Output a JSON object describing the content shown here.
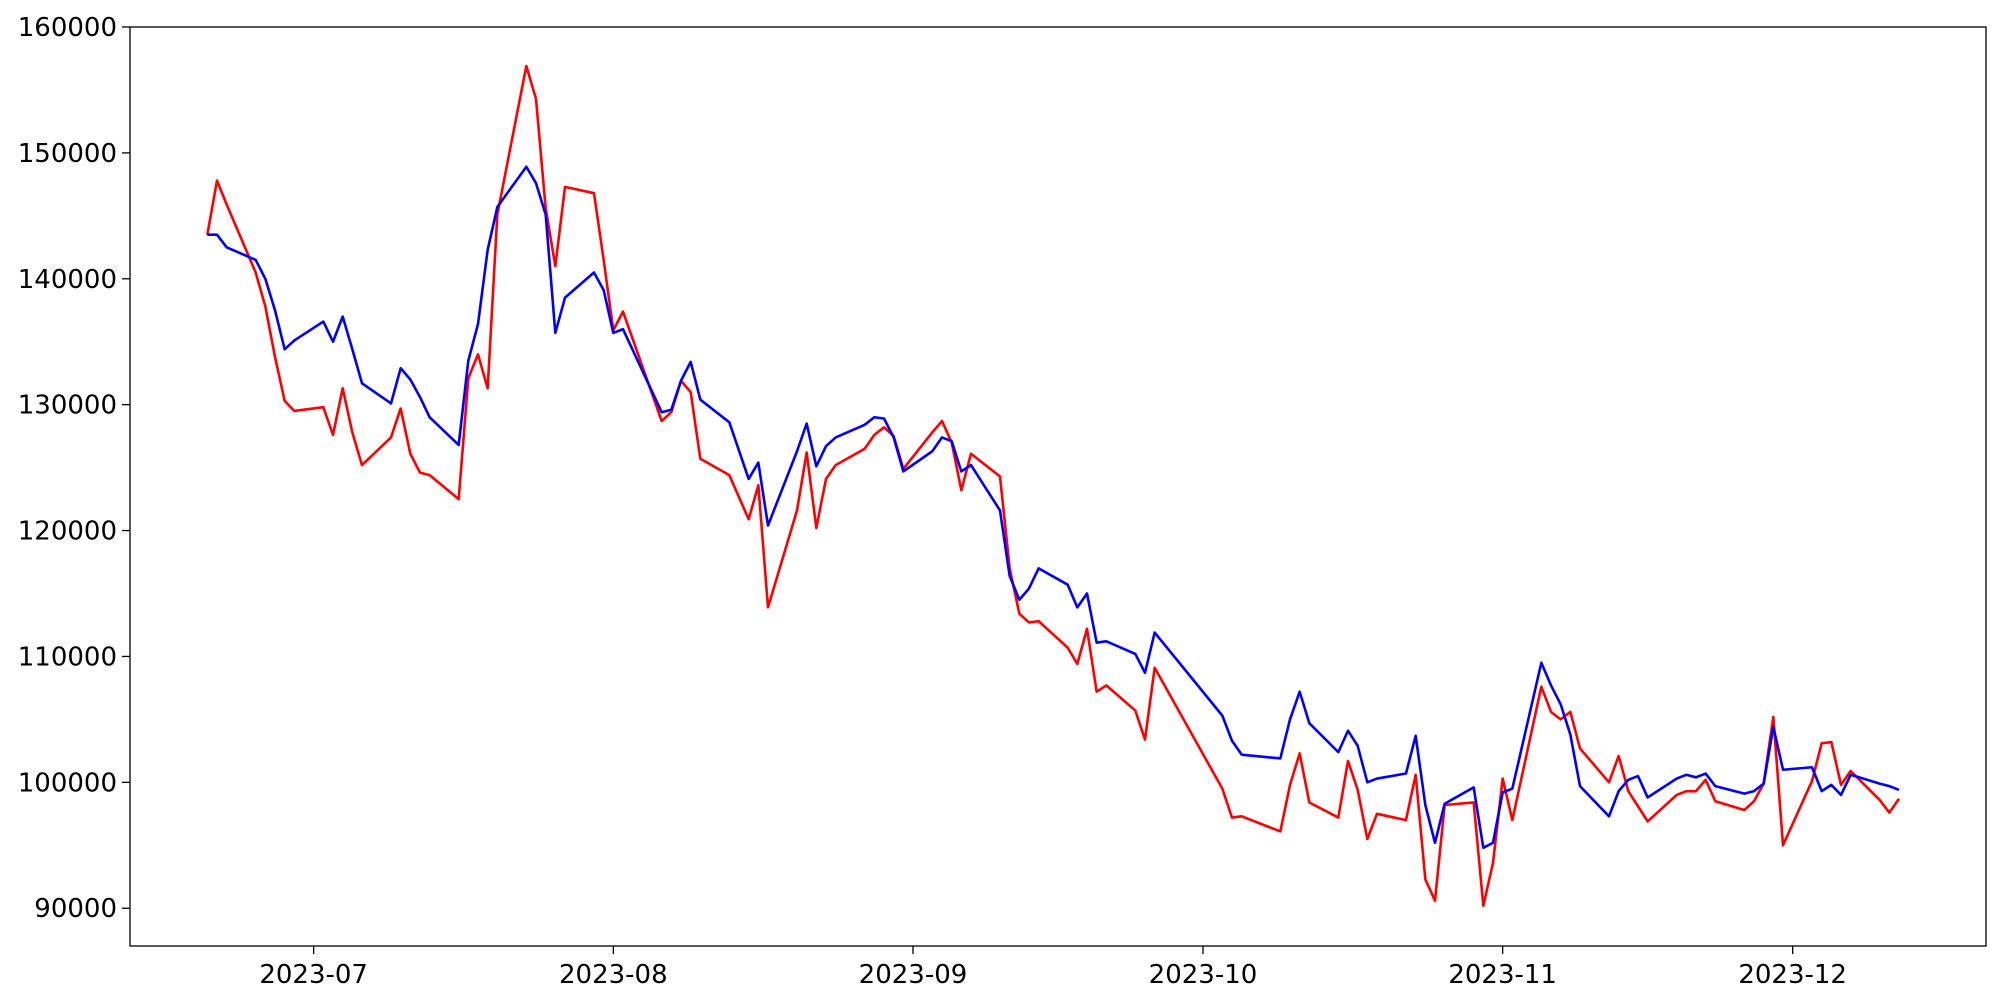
{
  "chart_data": {
    "type": "line",
    "x": [
      "2023-06-20",
      "2023-06-21",
      "2023-06-22",
      "2023-06-25",
      "2023-06-26",
      "2023-06-27",
      "2023-06-28",
      "2023-06-29",
      "2023-07-02",
      "2023-07-03",
      "2023-07-04",
      "2023-07-05",
      "2023-07-06",
      "2023-07-09",
      "2023-07-10",
      "2023-07-11",
      "2023-07-12",
      "2023-07-13",
      "2023-07-16",
      "2023-07-17",
      "2023-07-18",
      "2023-07-19",
      "2023-07-20",
      "2023-07-23",
      "2023-07-24",
      "2023-07-25",
      "2023-07-26",
      "2023-07-27",
      "2023-07-30",
      "2023-07-31",
      "2023-08-01",
      "2023-08-02",
      "2023-08-06",
      "2023-08-07",
      "2023-08-08",
      "2023-08-09",
      "2023-08-10",
      "2023-08-13",
      "2023-08-15",
      "2023-08-16",
      "2023-08-17",
      "2023-08-20",
      "2023-08-21",
      "2023-08-22",
      "2023-08-23",
      "2023-08-24",
      "2023-08-27",
      "2023-08-28",
      "2023-08-29",
      "2023-08-30",
      "2023-08-31",
      "2023-09-03",
      "2023-09-04",
      "2023-09-05",
      "2023-09-06",
      "2023-09-07",
      "2023-09-10",
      "2023-09-11",
      "2023-09-12",
      "2023-09-13",
      "2023-09-14",
      "2023-09-17",
      "2023-09-18",
      "2023-09-19",
      "2023-09-20",
      "2023-09-21",
      "2023-09-24",
      "2023-09-25",
      "2023-09-26",
      "2023-10-03",
      "2023-10-04",
      "2023-10-05",
      "2023-10-09",
      "2023-10-10",
      "2023-10-11",
      "2023-10-12",
      "2023-10-15",
      "2023-10-16",
      "2023-10-17",
      "2023-10-18",
      "2023-10-19",
      "2023-10-22",
      "2023-10-23",
      "2023-10-24",
      "2023-10-25",
      "2023-10-26",
      "2023-10-29",
      "2023-10-30",
      "2023-10-31",
      "2023-11-01",
      "2023-11-02",
      "2023-11-05",
      "2023-11-06",
      "2023-11-07",
      "2023-11-08",
      "2023-11-09",
      "2023-11-12",
      "2023-11-13",
      "2023-11-14",
      "2023-11-15",
      "2023-11-16",
      "2023-11-19",
      "2023-11-20",
      "2023-11-21",
      "2023-11-22",
      "2023-11-23",
      "2023-11-26",
      "2023-11-27",
      "2023-11-28",
      "2023-11-29",
      "2023-11-30",
      "2023-12-03",
      "2023-12-04",
      "2023-12-05",
      "2023-12-06",
      "2023-12-07",
      "2023-12-10",
      "2023-12-11",
      "2023-12-12"
    ],
    "series": [
      {
        "color": "#ff0000",
        "values": [
          143500,
          147800,
          145900,
          140500,
          137800,
          133800,
          130300,
          129500,
          129800,
          127600,
          131300,
          127800,
          125200,
          127400,
          129700,
          126100,
          124600,
          124400,
          122500,
          132100,
          134000,
          131300,
          145100,
          156900,
          154300,
          145600,
          141000,
          147300,
          146800,
          141500,
          135900,
          137400,
          128700,
          129400,
          131900,
          131000,
          125700,
          124400,
          120900,
          123600,
          113900,
          121600,
          126200,
          120200,
          124100,
          125200,
          126500,
          127600,
          128200,
          127500,
          124900,
          127800,
          128700,
          127000,
          123200,
          126100,
          124300,
          117000,
          113400,
          112700,
          112800,
          110700,
          109400,
          112200,
          107200,
          107700,
          105700,
          103400,
          109100,
          99500,
          97200,
          97300,
          96100,
          99800,
          102300,
          98400,
          97200,
          101700,
          99400,
          95500,
          97500,
          97000,
          100600,
          92300,
          90600,
          98200,
          98400,
          90200,
          93600,
          100300,
          97000,
          107600,
          105600,
          105000,
          105600,
          102700,
          100000,
          102100,
          99300,
          98100,
          96900,
          99000,
          99300,
          99300,
          100200,
          98500,
          97800,
          98500,
          99900,
          105200,
          95000,
          100100,
          103100,
          103200,
          99800,
          100900,
          98600,
          97600,
          98700
        ]
      },
      {
        "color": "#0000ff",
        "values": [
          143500,
          143500,
          142500,
          141500,
          140000,
          137500,
          134400,
          135100,
          136600,
          135000,
          137000,
          134400,
          131700,
          130100,
          132900,
          132000,
          130600,
          129000,
          126800,
          133500,
          136400,
          142300,
          145700,
          148900,
          147600,
          145100,
          135700,
          138500,
          140500,
          139100,
          135700,
          136000,
          129400,
          129600,
          131900,
          133400,
          130400,
          128600,
          124100,
          125400,
          120400,
          126300,
          128500,
          125100,
          126700,
          127400,
          128400,
          129000,
          128900,
          127400,
          124700,
          126300,
          127400,
          127100,
          124700,
          125200,
          121600,
          116400,
          114500,
          115400,
          117000,
          115700,
          113900,
          115000,
          111100,
          111200,
          110200,
          108700,
          111900,
          105300,
          103300,
          102200,
          101900,
          105000,
          107200,
          104700,
          102400,
          104100,
          102900,
          100000,
          100300,
          100700,
          103700,
          98200,
          95200,
          98300,
          99600,
          94800,
          95200,
          99200,
          99500,
          109500,
          107700,
          106200,
          103800,
          99700,
          97300,
          99300,
          100200,
          100500,
          98800,
          100300,
          100600,
          100400,
          100700,
          99700,
          99100,
          99300,
          99900,
          104400,
          101000,
          101200,
          99300,
          99800,
          99000,
          100600,
          99900,
          99700,
          99400
        ]
      }
    ],
    "xlim": [
      "2023-06-12",
      "2023-12-21"
    ],
    "xticks": [
      {
        "value": "2023-07-01",
        "label": "2023-07"
      },
      {
        "value": "2023-08-01",
        "label": "2023-08"
      },
      {
        "value": "2023-09-01",
        "label": "2023-09"
      },
      {
        "value": "2023-10-01",
        "label": "2023-10"
      },
      {
        "value": "2023-11-01",
        "label": "2023-11"
      },
      {
        "value": "2023-12-01",
        "label": "2023-12"
      }
    ],
    "ylim": [
      87000,
      160000
    ],
    "yticks": [
      90000,
      100000,
      110000,
      120000,
      130000,
      140000,
      150000,
      160000
    ],
    "grid": false
  }
}
